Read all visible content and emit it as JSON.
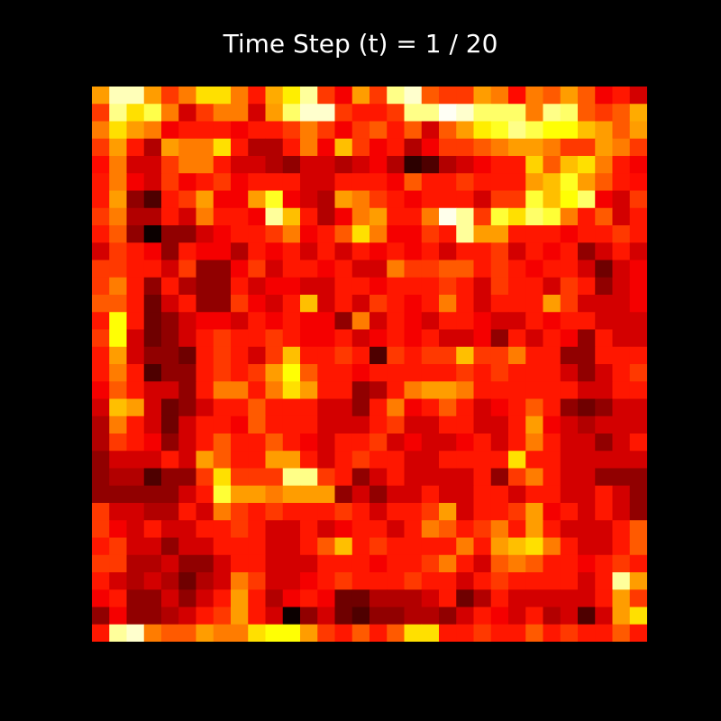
{
  "chart_data": {
    "type": "heatmap",
    "title": "Time Step (t) = 1 / 20",
    "xlabel": "",
    "ylabel": "",
    "colormap": "hot",
    "value_range": [
      0,
      1
    ],
    "axes_visible": false,
    "grid": false,
    "background_color": "#000000",
    "title_color": "#ffffff",
    "rows": 32,
    "cols": 32,
    "values": [
      [
        0.6,
        0.93,
        0.93,
        0.6,
        0.45,
        0.55,
        0.7,
        0.7,
        0.55,
        0.4,
        0.62,
        0.72,
        0.9,
        0.45,
        0.35,
        0.6,
        0.45,
        0.88,
        0.95,
        0.5,
        0.45,
        0.45,
        0.6,
        0.55,
        0.38,
        0.55,
        0.5,
        0.6,
        0.5,
        0.35,
        0.4,
        0.3
      ],
      [
        0.45,
        0.88,
        0.7,
        0.82,
        0.55,
        0.3,
        0.45,
        0.55,
        0.55,
        0.3,
        0.6,
        0.85,
        0.95,
        0.95,
        0.45,
        0.4,
        0.4,
        0.45,
        0.88,
        0.88,
        0.99,
        0.95,
        0.85,
        0.85,
        0.85,
        0.55,
        0.88,
        0.85,
        0.5,
        0.45,
        0.5,
        0.62
      ],
      [
        0.55,
        0.7,
        0.6,
        0.55,
        0.35,
        0.4,
        0.4,
        0.4,
        0.35,
        0.4,
        0.4,
        0.45,
        0.55,
        0.45,
        0.35,
        0.45,
        0.5,
        0.4,
        0.5,
        0.3,
        0.5,
        0.6,
        0.72,
        0.78,
        0.88,
        0.82,
        0.75,
        0.75,
        0.65,
        0.6,
        0.5,
        0.6
      ],
      [
        0.45,
        0.6,
        0.4,
        0.25,
        0.6,
        0.55,
        0.55,
        0.7,
        0.4,
        0.25,
        0.25,
        0.4,
        0.55,
        0.35,
        0.65,
        0.45,
        0.35,
        0.4,
        0.25,
        0.35,
        0.45,
        0.45,
        0.5,
        0.55,
        0.6,
        0.6,
        0.55,
        0.45,
        0.45,
        0.6,
        0.55,
        0.45
      ],
      [
        0.38,
        0.55,
        0.3,
        0.3,
        0.45,
        0.55,
        0.55,
        0.4,
        0.3,
        0.3,
        0.25,
        0.2,
        0.3,
        0.3,
        0.25,
        0.3,
        0.35,
        0.25,
        0.05,
        0.1,
        0.25,
        0.3,
        0.35,
        0.4,
        0.4,
        0.68,
        0.5,
        0.65,
        0.7,
        0.55,
        0.4,
        0.35
      ],
      [
        0.4,
        0.55,
        0.35,
        0.3,
        0.45,
        0.35,
        0.4,
        0.45,
        0.35,
        0.4,
        0.4,
        0.4,
        0.3,
        0.3,
        0.4,
        0.4,
        0.4,
        0.35,
        0.5,
        0.4,
        0.4,
        0.45,
        0.4,
        0.4,
        0.4,
        0.6,
        0.65,
        0.78,
        0.6,
        0.5,
        0.4,
        0.38
      ],
      [
        0.4,
        0.6,
        0.2,
        0.1,
        0.4,
        0.45,
        0.6,
        0.35,
        0.35,
        0.6,
        0.78,
        0.35,
        0.3,
        0.25,
        0.6,
        0.55,
        0.45,
        0.4,
        0.35,
        0.4,
        0.4,
        0.4,
        0.3,
        0.45,
        0.45,
        0.8,
        0.65,
        0.75,
        0.85,
        0.35,
        0.3,
        0.45
      ],
      [
        0.45,
        0.55,
        0.25,
        0.25,
        0.4,
        0.3,
        0.55,
        0.4,
        0.4,
        0.35,
        0.9,
        0.65,
        0.4,
        0.25,
        0.35,
        0.55,
        0.6,
        0.4,
        0.4,
        0.55,
        0.98,
        0.9,
        0.45,
        0.8,
        0.7,
        0.85,
        0.8,
        0.55,
        0.4,
        0.5,
        0.3,
        0.4
      ],
      [
        0.4,
        0.5,
        0.2,
        0.0,
        0.2,
        0.2,
        0.3,
        0.35,
        0.4,
        0.4,
        0.45,
        0.55,
        0.35,
        0.4,
        0.5,
        0.7,
        0.55,
        0.35,
        0.35,
        0.45,
        0.4,
        0.9,
        0.6,
        0.6,
        0.4,
        0.4,
        0.4,
        0.35,
        0.4,
        0.4,
        0.45,
        0.4
      ],
      [
        0.3,
        0.45,
        0.4,
        0.35,
        0.2,
        0.4,
        0.35,
        0.35,
        0.25,
        0.4,
        0.35,
        0.4,
        0.3,
        0.4,
        0.3,
        0.4,
        0.35,
        0.4,
        0.35,
        0.4,
        0.3,
        0.4,
        0.4,
        0.45,
        0.3,
        0.4,
        0.35,
        0.4,
        0.2,
        0.3,
        0.4,
        0.3
      ],
      [
        0.45,
        0.45,
        0.4,
        0.4,
        0.3,
        0.45,
        0.2,
        0.2,
        0.35,
        0.45,
        0.3,
        0.4,
        0.4,
        0.35,
        0.4,
        0.3,
        0.3,
        0.55,
        0.45,
        0.45,
        0.5,
        0.5,
        0.4,
        0.45,
        0.4,
        0.35,
        0.4,
        0.4,
        0.3,
        0.15,
        0.3,
        0.35
      ],
      [
        0.45,
        0.55,
        0.4,
        0.2,
        0.4,
        0.25,
        0.2,
        0.2,
        0.4,
        0.3,
        0.35,
        0.35,
        0.3,
        0.3,
        0.4,
        0.4,
        0.35,
        0.4,
        0.4,
        0.4,
        0.45,
        0.4,
        0.3,
        0.45,
        0.4,
        0.4,
        0.3,
        0.45,
        0.4,
        0.2,
        0.3,
        0.35
      ],
      [
        0.5,
        0.5,
        0.4,
        0.15,
        0.3,
        0.4,
        0.2,
        0.2,
        0.45,
        0.35,
        0.3,
        0.4,
        0.65,
        0.3,
        0.4,
        0.3,
        0.45,
        0.4,
        0.35,
        0.4,
        0.55,
        0.4,
        0.3,
        0.4,
        0.4,
        0.4,
        0.6,
        0.45,
        0.3,
        0.3,
        0.3,
        0.35
      ],
      [
        0.4,
        0.75,
        0.4,
        0.15,
        0.2,
        0.3,
        0.35,
        0.35,
        0.3,
        0.4,
        0.35,
        0.4,
        0.35,
        0.35,
        0.2,
        0.55,
        0.3,
        0.4,
        0.35,
        0.3,
        0.4,
        0.4,
        0.35,
        0.3,
        0.3,
        0.4,
        0.35,
        0.4,
        0.4,
        0.3,
        0.3,
        0.3
      ],
      [
        0.45,
        0.75,
        0.3,
        0.15,
        0.2,
        0.3,
        0.4,
        0.45,
        0.4,
        0.4,
        0.45,
        0.4,
        0.35,
        0.35,
        0.4,
        0.3,
        0.35,
        0.4,
        0.35,
        0.4,
        0.3,
        0.3,
        0.35,
        0.2,
        0.4,
        0.3,
        0.4,
        0.35,
        0.2,
        0.4,
        0.3,
        0.3
      ],
      [
        0.4,
        0.6,
        0.3,
        0.2,
        0.2,
        0.15,
        0.4,
        0.45,
        0.4,
        0.3,
        0.45,
        0.65,
        0.4,
        0.4,
        0.45,
        0.4,
        0.1,
        0.45,
        0.4,
        0.45,
        0.45,
        0.65,
        0.45,
        0.45,
        0.55,
        0.4,
        0.4,
        0.2,
        0.2,
        0.4,
        0.4,
        0.4
      ],
      [
        0.4,
        0.55,
        0.4,
        0.1,
        0.2,
        0.2,
        0.4,
        0.45,
        0.4,
        0.45,
        0.6,
        0.75,
        0.5,
        0.4,
        0.4,
        0.35,
        0.4,
        0.4,
        0.4,
        0.4,
        0.4,
        0.45,
        0.4,
        0.45,
        0.4,
        0.4,
        0.4,
        0.3,
        0.2,
        0.3,
        0.4,
        0.45
      ],
      [
        0.35,
        0.5,
        0.4,
        0.3,
        0.3,
        0.2,
        0.4,
        0.55,
        0.55,
        0.4,
        0.55,
        0.7,
        0.6,
        0.4,
        0.4,
        0.2,
        0.25,
        0.4,
        0.55,
        0.6,
        0.6,
        0.55,
        0.4,
        0.4,
        0.4,
        0.4,
        0.4,
        0.4,
        0.3,
        0.3,
        0.4,
        0.4
      ],
      [
        0.3,
        0.65,
        0.6,
        0.3,
        0.15,
        0.2,
        0.3,
        0.4,
        0.4,
        0.5,
        0.4,
        0.4,
        0.4,
        0.3,
        0.3,
        0.2,
        0.4,
        0.55,
        0.35,
        0.4,
        0.5,
        0.4,
        0.3,
        0.35,
        0.4,
        0.5,
        0.4,
        0.2,
        0.15,
        0.2,
        0.3,
        0.3
      ],
      [
        0.25,
        0.55,
        0.4,
        0.3,
        0.15,
        0.3,
        0.4,
        0.4,
        0.35,
        0.5,
        0.4,
        0.4,
        0.4,
        0.3,
        0.3,
        0.3,
        0.4,
        0.45,
        0.3,
        0.3,
        0.4,
        0.4,
        0.3,
        0.3,
        0.4,
        0.6,
        0.35,
        0.3,
        0.25,
        0.3,
        0.3,
        0.3
      ],
      [
        0.25,
        0.45,
        0.4,
        0.35,
        0.2,
        0.3,
        0.4,
        0.5,
        0.4,
        0.4,
        0.5,
        0.4,
        0.35,
        0.3,
        0.4,
        0.4,
        0.45,
        0.3,
        0.35,
        0.3,
        0.3,
        0.35,
        0.4,
        0.3,
        0.4,
        0.55,
        0.4,
        0.3,
        0.3,
        0.2,
        0.3,
        0.4
      ],
      [
        0.2,
        0.3,
        0.3,
        0.3,
        0.4,
        0.3,
        0.6,
        0.5,
        0.4,
        0.4,
        0.6,
        0.6,
        0.4,
        0.3,
        0.4,
        0.45,
        0.4,
        0.4,
        0.3,
        0.3,
        0.4,
        0.4,
        0.4,
        0.4,
        0.7,
        0.4,
        0.4,
        0.3,
        0.3,
        0.3,
        0.3,
        0.3
      ],
      [
        0.2,
        0.25,
        0.25,
        0.1,
        0.2,
        0.2,
        0.45,
        0.7,
        0.45,
        0.45,
        0.45,
        0.88,
        0.88,
        0.45,
        0.4,
        0.2,
        0.3,
        0.4,
        0.3,
        0.3,
        0.3,
        0.3,
        0.4,
        0.2,
        0.45,
        0.55,
        0.4,
        0.3,
        0.3,
        0.2,
        0.2,
        0.2
      ],
      [
        0.2,
        0.2,
        0.2,
        0.2,
        0.2,
        0.3,
        0.4,
        0.8,
        0.6,
        0.6,
        0.55,
        0.6,
        0.6,
        0.6,
        0.2,
        0.3,
        0.2,
        0.3,
        0.3,
        0.4,
        0.3,
        0.3,
        0.4,
        0.4,
        0.3,
        0.4,
        0.4,
        0.3,
        0.3,
        0.4,
        0.3,
        0.2
      ],
      [
        0.45,
        0.3,
        0.3,
        0.25,
        0.25,
        0.4,
        0.3,
        0.55,
        0.45,
        0.4,
        0.45,
        0.4,
        0.4,
        0.4,
        0.45,
        0.4,
        0.3,
        0.4,
        0.4,
        0.45,
        0.6,
        0.3,
        0.4,
        0.4,
        0.45,
        0.6,
        0.35,
        0.4,
        0.3,
        0.4,
        0.3,
        0.2
      ],
      [
        0.45,
        0.35,
        0.3,
        0.4,
        0.3,
        0.3,
        0.4,
        0.4,
        0.45,
        0.4,
        0.3,
        0.3,
        0.4,
        0.3,
        0.35,
        0.4,
        0.4,
        0.3,
        0.4,
        0.55,
        0.5,
        0.4,
        0.45,
        0.55,
        0.4,
        0.6,
        0.4,
        0.3,
        0.3,
        0.3,
        0.4,
        0.5
      ],
      [
        0.4,
        0.45,
        0.3,
        0.3,
        0.2,
        0.3,
        0.3,
        0.4,
        0.4,
        0.4,
        0.3,
        0.3,
        0.4,
        0.5,
        0.65,
        0.4,
        0.45,
        0.4,
        0.4,
        0.4,
        0.4,
        0.55,
        0.4,
        0.6,
        0.65,
        0.7,
        0.55,
        0.4,
        0.3,
        0.3,
        0.4,
        0.5
      ],
      [
        0.45,
        0.45,
        0.25,
        0.25,
        0.3,
        0.2,
        0.2,
        0.3,
        0.4,
        0.4,
        0.3,
        0.3,
        0.3,
        0.4,
        0.4,
        0.4,
        0.35,
        0.4,
        0.4,
        0.45,
        0.55,
        0.4,
        0.3,
        0.5,
        0.55,
        0.5,
        0.4,
        0.4,
        0.35,
        0.4,
        0.45,
        0.4
      ],
      [
        0.4,
        0.3,
        0.25,
        0.3,
        0.25,
        0.15,
        0.25,
        0.3,
        0.55,
        0.45,
        0.3,
        0.3,
        0.35,
        0.4,
        0.45,
        0.4,
        0.4,
        0.4,
        0.45,
        0.4,
        0.4,
        0.3,
        0.4,
        0.45,
        0.4,
        0.4,
        0.4,
        0.4,
        0.3,
        0.4,
        0.9,
        0.6
      ],
      [
        0.35,
        0.4,
        0.2,
        0.2,
        0.3,
        0.2,
        0.3,
        0.4,
        0.6,
        0.4,
        0.25,
        0.35,
        0.4,
        0.35,
        0.15,
        0.15,
        0.25,
        0.25,
        0.25,
        0.3,
        0.4,
        0.15,
        0.25,
        0.4,
        0.3,
        0.3,
        0.3,
        0.3,
        0.3,
        0.4,
        0.6,
        0.45
      ],
      [
        0.2,
        0.35,
        0.2,
        0.2,
        0.25,
        0.3,
        0.4,
        0.45,
        0.6,
        0.4,
        0.3,
        0.0,
        0.2,
        0.3,
        0.15,
        0.1,
        0.2,
        0.2,
        0.25,
        0.25,
        0.2,
        0.3,
        0.4,
        0.35,
        0.3,
        0.4,
        0.25,
        0.3,
        0.1,
        0.3,
        0.6,
        0.7
      ],
      [
        0.4,
        0.9,
        0.95,
        0.55,
        0.5,
        0.5,
        0.6,
        0.55,
        0.55,
        0.7,
        0.75,
        0.75,
        0.6,
        0.45,
        0.4,
        0.5,
        0.4,
        0.5,
        0.7,
        0.7,
        0.4,
        0.4,
        0.45,
        0.4,
        0.4,
        0.5,
        0.4,
        0.45,
        0.4,
        0.4,
        0.5,
        0.4
      ]
    ]
  }
}
